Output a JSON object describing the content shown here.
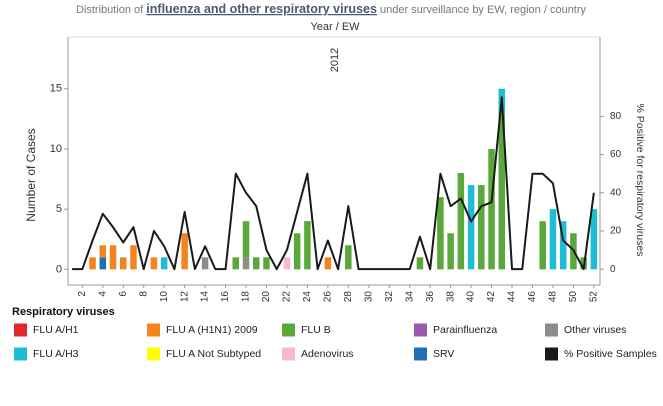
{
  "chart_data": {
    "type": "bar",
    "title": {
      "prefix": "Distribution of",
      "link": "influenza and other respiratory viruses",
      "suffix": "under surveillance by EW, region / country"
    },
    "header": "Year / EW",
    "panel_label": "2012",
    "ylabel": "Number of Cases",
    "y2label": "% Positive for respiratory viruses",
    "legend_title": "Respiratory viruses",
    "x": [
      1,
      2,
      3,
      4,
      5,
      6,
      7,
      8,
      9,
      10,
      11,
      12,
      13,
      14,
      15,
      16,
      17,
      18,
      19,
      20,
      21,
      22,
      23,
      24,
      25,
      26,
      27,
      28,
      29,
      30,
      31,
      32,
      33,
      34,
      35,
      36,
      37,
      38,
      39,
      40,
      41,
      42,
      43,
      44,
      45,
      46,
      47,
      48,
      49,
      50,
      51,
      52
    ],
    "xlim": [
      0.6,
      52.6
    ],
    "xticks": [
      2,
      4,
      6,
      8,
      10,
      12,
      14,
      16,
      18,
      20,
      22,
      24,
      26,
      28,
      30,
      32,
      34,
      36,
      38,
      40,
      42,
      44,
      46,
      48,
      50,
      52
    ],
    "ylim": [
      -1.3,
      19.3
    ],
    "yticks": [
      0,
      5,
      10,
      15
    ],
    "y2lim": [
      -8.3,
      121.6
    ],
    "y2ticks": [
      0,
      20,
      40,
      60,
      80
    ],
    "series": [
      {
        "name": "SRV",
        "color": "#1f6fb2",
        "values": [
          0,
          0,
          0,
          1,
          0,
          0,
          0,
          0,
          0,
          0,
          0,
          0,
          0,
          0,
          0,
          0,
          0,
          0,
          0,
          0,
          0,
          0,
          0,
          0,
          0,
          0,
          0,
          0,
          0,
          0,
          0,
          0,
          0,
          0,
          0,
          0,
          0,
          0,
          0,
          0,
          0,
          0,
          0,
          0,
          0,
          0,
          0,
          0,
          0,
          0,
          0,
          0
        ]
      },
      {
        "name": "Other viruses",
        "color": "#8c8c8c",
        "values": [
          0,
          0,
          0,
          0,
          0,
          0,
          0,
          0,
          0,
          0,
          0,
          0,
          0,
          1,
          0,
          0,
          0,
          1,
          0,
          0,
          0,
          0,
          0,
          0,
          0,
          0,
          0,
          0,
          0,
          0,
          0,
          0,
          0,
          0,
          0,
          0,
          0,
          0,
          0,
          0,
          0,
          0,
          0,
          0,
          0,
          0,
          0,
          0,
          0,
          0,
          0,
          0
        ]
      },
      {
        "name": "FLU B",
        "color": "#5aa83a",
        "values": [
          0,
          0,
          0,
          0,
          0,
          0,
          0,
          0,
          0,
          0,
          0,
          0,
          0,
          0,
          0,
          0,
          1,
          3,
          1,
          1,
          0,
          0,
          3,
          4,
          0,
          0,
          0,
          2,
          0,
          0,
          0,
          0,
          0,
          0,
          1,
          0,
          6,
          3,
          8,
          0,
          7,
          10,
          13,
          0,
          0,
          0,
          4,
          0,
          0,
          3,
          1,
          0
        ]
      },
      {
        "name": "FLU A (H1N1) 2009",
        "color": "#f5841f",
        "values": [
          0,
          0,
          1,
          1,
          2,
          1,
          2,
          0,
          1,
          0,
          0,
          3,
          0,
          0,
          0,
          0,
          0,
          0,
          0,
          0,
          0,
          0,
          0,
          0,
          0,
          1,
          0,
          0,
          0,
          0,
          0,
          0,
          0,
          0,
          0,
          0,
          0,
          0,
          0,
          0,
          0,
          0,
          0,
          0,
          0,
          0,
          0,
          0,
          0,
          0,
          0,
          0
        ]
      },
      {
        "name": "Adenovirus",
        "color": "#f7b8d4",
        "values": [
          0,
          0,
          0,
          0,
          0,
          0,
          0,
          0,
          0,
          0,
          0,
          0,
          0,
          0,
          0,
          0,
          0,
          0,
          0,
          0,
          0,
          1,
          0,
          0,
          0,
          0,
          0,
          0,
          0,
          0,
          0,
          0,
          0,
          0,
          0,
          0,
          0,
          0,
          0,
          0,
          0,
          0,
          0,
          0,
          0,
          0,
          0,
          0,
          0,
          0,
          0,
          0
        ]
      },
      {
        "name": "FLU A/H3",
        "color": "#1fbdd3",
        "values": [
          0,
          0,
          0,
          0,
          0,
          0,
          0,
          0,
          0,
          1,
          0,
          0,
          0,
          0,
          0,
          0,
          0,
          0,
          0,
          0,
          0,
          0,
          0,
          0,
          0,
          0,
          0,
          0,
          0,
          0,
          0,
          0,
          0,
          0,
          0,
          0,
          0,
          0,
          0,
          7,
          0,
          0,
          2,
          0,
          0,
          0,
          0,
          5,
          4,
          0,
          0,
          5
        ]
      },
      {
        "name": "FLU A/H1",
        "color": "#e0262f",
        "values": [
          0,
          0,
          0,
          0,
          0,
          0,
          0,
          0,
          0,
          0,
          0,
          0,
          0,
          0,
          0,
          0,
          0,
          0,
          0,
          0,
          0,
          0,
          0,
          0,
          0,
          0,
          0,
          0,
          0,
          0,
          0,
          0,
          0,
          0,
          0,
          0,
          0,
          0,
          0,
          0,
          0,
          0,
          0,
          0,
          0,
          0,
          0,
          0,
          0,
          0,
          0,
          0
        ]
      },
      {
        "name": "FLU A Not Subtyped",
        "color": "#ffff00",
        "values": [
          0,
          0,
          0,
          0,
          0,
          0,
          0,
          0,
          0,
          0,
          0,
          0,
          0,
          0,
          0,
          0,
          0,
          0,
          0,
          0,
          0,
          0,
          0,
          0,
          0,
          0,
          0,
          0,
          0,
          0,
          0,
          0,
          0,
          0,
          0,
          0,
          0,
          0,
          0,
          0,
          0,
          0,
          0,
          0,
          0,
          0,
          0,
          0,
          0,
          0,
          0,
          0
        ]
      },
      {
        "name": "Parainfluenza",
        "color": "#9b59b6",
        "values": [
          0,
          0,
          0,
          0,
          0,
          0,
          0,
          0,
          0,
          0,
          0,
          0,
          0,
          0,
          0,
          0,
          0,
          0,
          0,
          0,
          0,
          0,
          0,
          0,
          0,
          0,
          0,
          0,
          0,
          0,
          0,
          0,
          0,
          0,
          0,
          0,
          0,
          0,
          0,
          0,
          0,
          0,
          0,
          0,
          0,
          0,
          0,
          0,
          0,
          0,
          0,
          0
        ]
      },
      {
        "name": "% Positive Samples",
        "color": "#1a1a1a",
        "type": "line",
        "axis": "y2",
        "values": [
          0,
          0,
          15,
          29,
          22,
          14,
          22,
          0,
          20,
          12,
          0,
          30,
          0,
          12,
          0,
          0,
          50,
          40,
          33,
          10,
          0,
          10,
          30,
          50,
          0,
          15,
          0,
          33,
          0,
          0,
          0,
          0,
          0,
          0,
          17,
          0,
          50,
          33,
          37,
          25,
          33,
          35,
          90,
          0,
          0,
          50,
          50,
          45,
          15,
          10,
          0,
          40
        ]
      }
    ]
  }
}
